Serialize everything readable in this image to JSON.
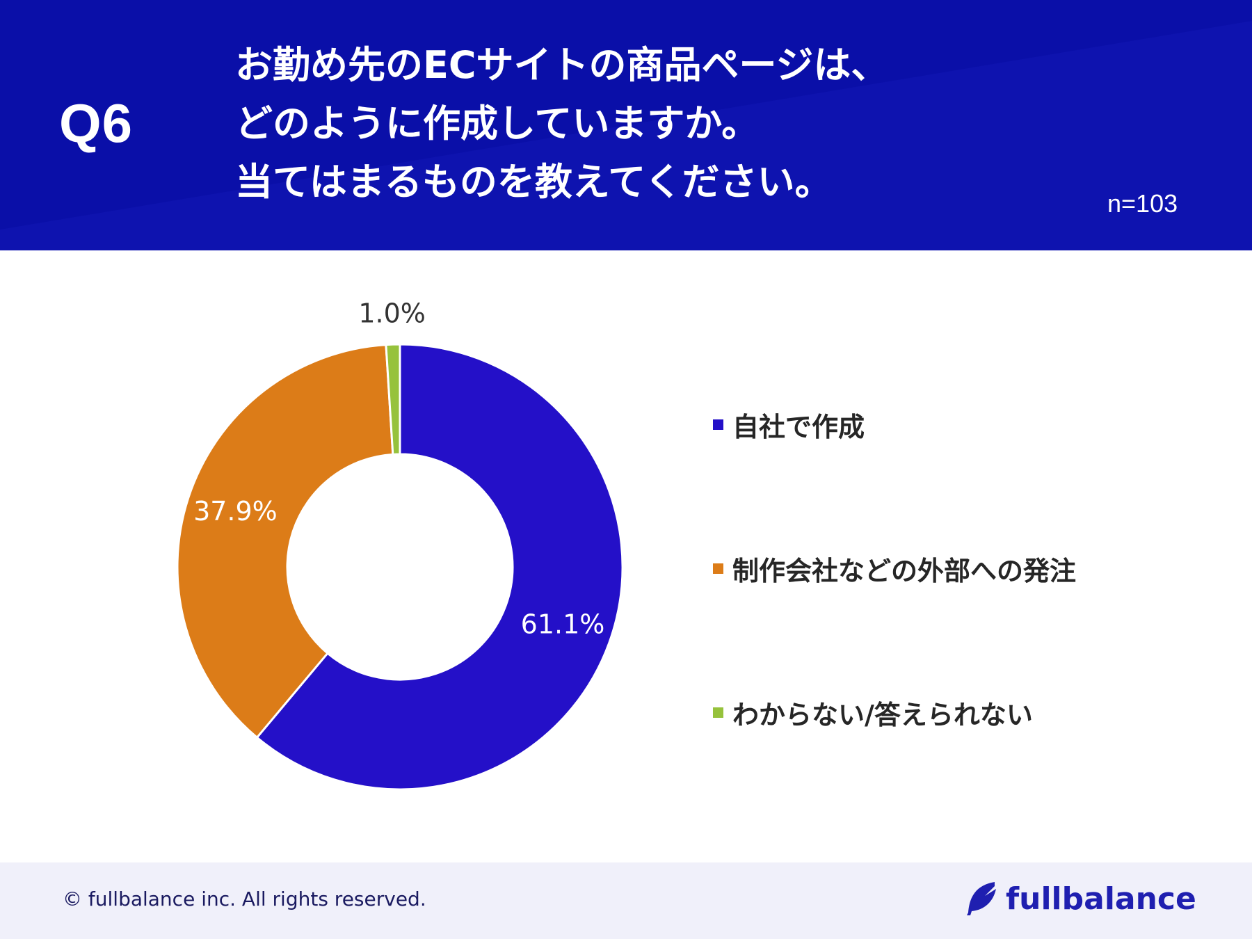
{
  "header": {
    "q_label": "Q6",
    "question_lines": [
      "お勤め先のECサイトの商品ページは、",
      "どのように作成していますか。",
      "当てはまるものを教えてください。"
    ],
    "sample_size": "n=103",
    "background_color": "#0a0fa8"
  },
  "chart_data": {
    "type": "pie",
    "title": "",
    "categories": [
      "自社で作成",
      "制作会社などの外部への発注",
      "わからない/答えられない"
    ],
    "values": [
      61.1,
      37.9,
      1.0
    ],
    "value_labels": [
      "61.1%",
      "37.9%",
      "1.0%"
    ],
    "colors": [
      "#2410c8",
      "#dc7c18",
      "#96c23c"
    ],
    "donut": true,
    "start_angle": "12 o'clock, clockwise",
    "legend_position": "right"
  },
  "footer": {
    "copyright": "© fullbalance inc. All rights reserved.",
    "logo_text": "fullbalance",
    "logo_icon": "feather-icon"
  }
}
